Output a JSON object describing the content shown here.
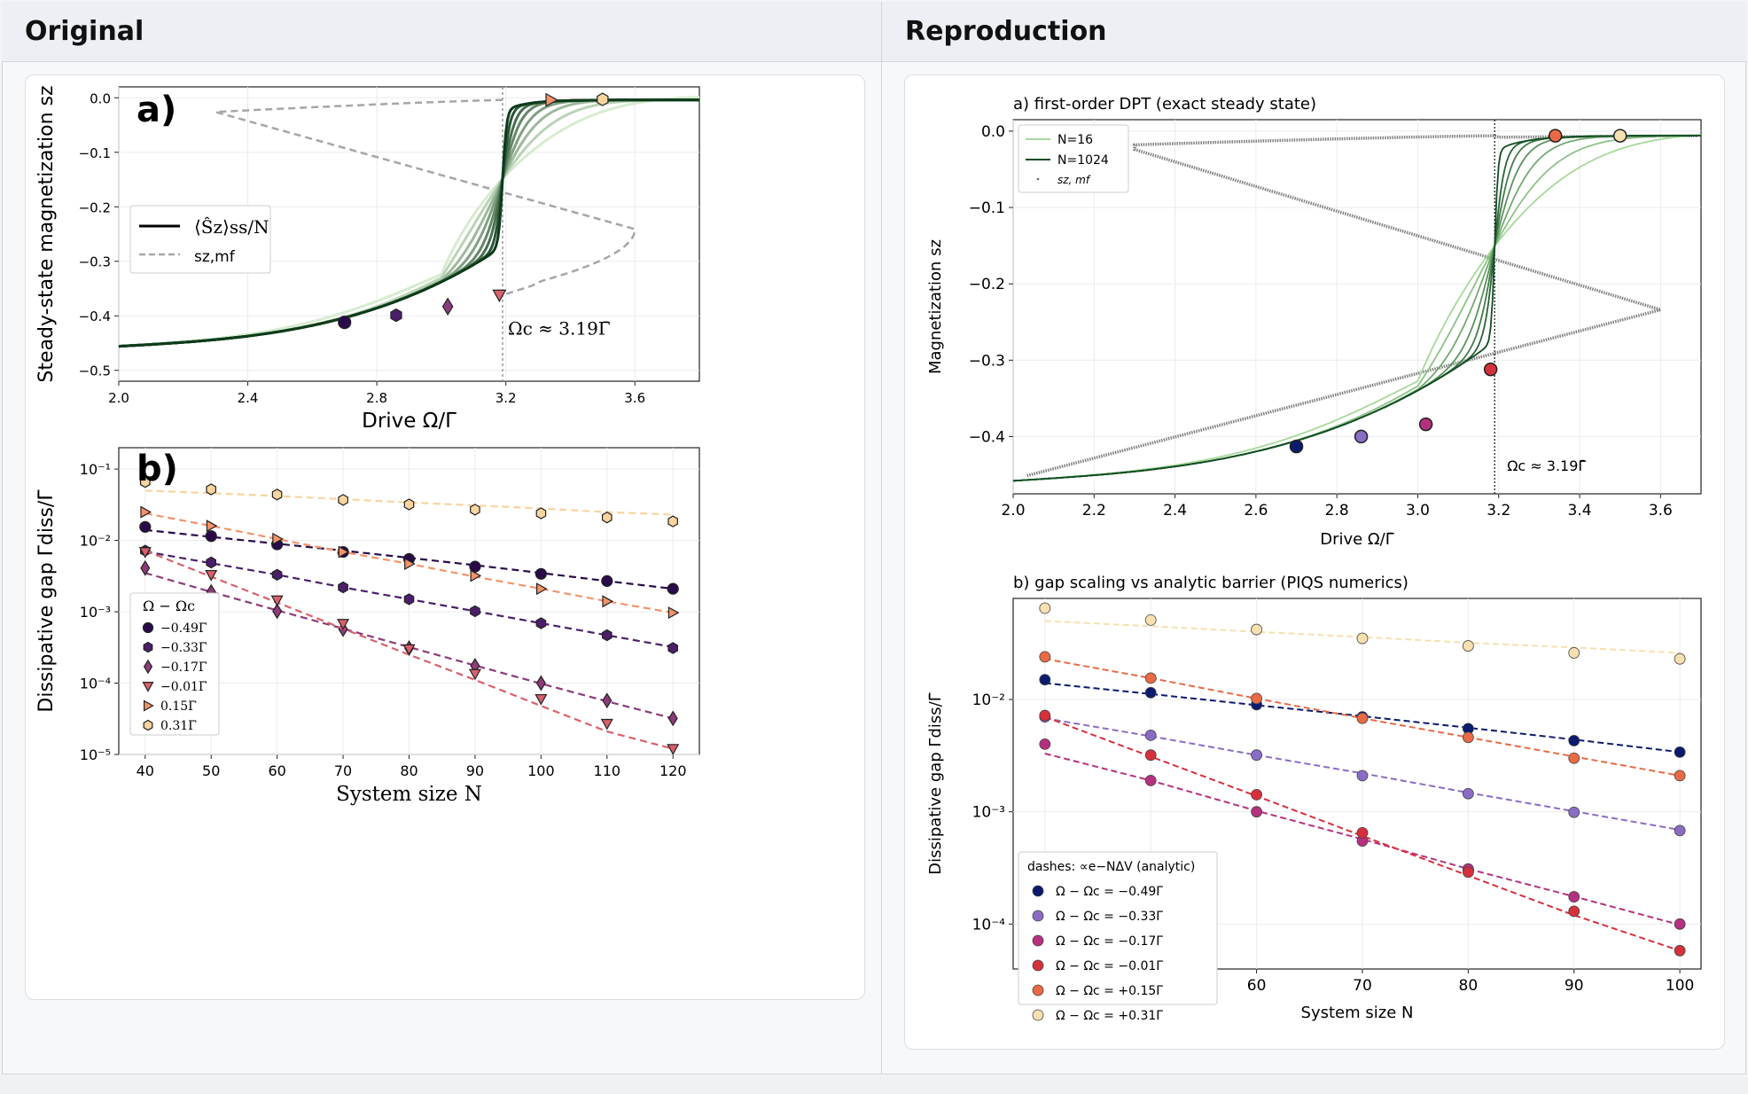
{
  "panels": {
    "left_title": "Original",
    "right_title": "Reproduction"
  },
  "colors": {
    "green_light": "#d7ecd0",
    "green_dark": "#0d3b1a",
    "mf_gray": "#a6a6a6",
    "repro_mf_gray": "#808080"
  },
  "chart_data": [
    {
      "id": "original-a",
      "type": "line",
      "panel_label": "a)",
      "xlabel": "Drive Ω/Γ̄",
      "ylabel": "Steady-state magnetization sz",
      "xlim": [
        2.0,
        3.8
      ],
      "ylim": [
        -0.52,
        0.02
      ],
      "xticks": [
        "2.0",
        "2.4",
        "2.8",
        "3.2",
        "3.6"
      ],
      "yticks": [
        "0.0",
        "−0.1",
        "−0.2",
        "−0.3",
        "−0.4",
        "−0.5"
      ],
      "legend": [
        "⟨Ŝz⟩ss/N",
        "sz,mf"
      ],
      "annotation": "Ωc ≈ 3.19Γ̄",
      "critical_drive": 3.19,
      "curve_sharpness": [
        1.2,
        2.2,
        3.6,
        5.5,
        8.5,
        13,
        22,
        40
      ],
      "markers": [
        {
          "x": 2.7,
          "y": -0.412,
          "shape": "circle",
          "color": "#2a0a4a"
        },
        {
          "x": 2.86,
          "y": -0.399,
          "shape": "hexagon",
          "color": "#4a1e6a"
        },
        {
          "x": 3.02,
          "y": -0.383,
          "shape": "diamond",
          "color": "#8e3b79"
        },
        {
          "x": 3.18,
          "y": -0.362,
          "shape": "triangle-down",
          "color": "#d9606a"
        },
        {
          "x": 3.34,
          "y": -0.004,
          "shape": "triangle-right",
          "color": "#f3936a"
        },
        {
          "x": 3.5,
          "y": -0.003,
          "shape": "hexagon",
          "color": "#f9d49e"
        }
      ]
    },
    {
      "id": "original-b",
      "type": "scatter",
      "panel_label": "b)",
      "xlabel": "System size N",
      "ylabel": "Dissipative gap Γdiss/Γ̄",
      "xlim": [
        36,
        124
      ],
      "ylog_range": [
        -5,
        -0.7
      ],
      "xticks": [
        40,
        50,
        60,
        70,
        80,
        90,
        100,
        110,
        120
      ],
      "yticks": [
        "10⁻¹",
        "10⁻²",
        "10⁻³",
        "10⁻⁴",
        "10⁻⁵"
      ],
      "legend_title": "Ω − Ωc",
      "x": [
        40,
        50,
        60,
        70,
        80,
        90,
        100,
        110,
        120
      ],
      "series": [
        {
          "name": "−0.49Γ̄",
          "shape": "circle",
          "color": "#2a0a4a",
          "values": [
            0.0155,
            0.0115,
            0.0088,
            0.0069,
            0.0055,
            0.0043,
            0.0034,
            0.0027,
            0.0021
          ],
          "fit": [
            0.014,
            0.0112,
            0.009,
            0.0072,
            0.0057,
            0.0045,
            0.0035,
            0.0027,
            0.0021
          ]
        },
        {
          "name": "−0.33Γ̄",
          "shape": "hexagon",
          "color": "#4a1e6a",
          "values": [
            0.0072,
            0.0049,
            0.0033,
            0.0022,
            0.0015,
            0.00102,
            0.00069,
            0.00047,
            0.00031
          ],
          "fit": [
            0.007,
            0.0048,
            0.0033,
            0.0022,
            0.0015,
            0.00102,
            0.00069,
            0.00047,
            0.00032
          ]
        },
        {
          "name": "−0.17Γ̄",
          "shape": "diamond",
          "color": "#8e3b79",
          "values": [
            0.0041,
            0.0019,
            0.00102,
            0.00057,
            0.00031,
            0.000175,
            0.0001,
            5.7e-05,
            3.2e-05
          ],
          "fit": [
            0.0035,
            0.0019,
            0.00105,
            0.00058,
            0.00032,
            0.000177,
            9.85e-05,
            5.55e-05,
            3.2e-05
          ]
        },
        {
          "name": "−0.01Γ̄",
          "shape": "triangle-down",
          "color": "#d9606a",
          "values": [
            0.0069,
            0.0033,
            0.00145,
            0.00068,
            0.0003,
            0.000135,
            6e-05,
            2.7e-05,
            1.2e-05
          ],
          "fit": [
            0.0072,
            0.0031,
            0.00135,
            0.00058,
            0.00025,
            0.000111,
            4.8e-05,
            2.1e-05,
            1.2e-05
          ]
        },
        {
          "name": "0.15Γ̄",
          "shape": "triangle-right",
          "color": "#f3936a",
          "values": [
            0.025,
            0.016,
            0.0105,
            0.0069,
            0.0047,
            0.0032,
            0.0021,
            0.0014,
            0.00097
          ],
          "fit": [
            0.024,
            0.016,
            0.0105,
            0.0069,
            0.0047,
            0.0031,
            0.0021,
            0.0014,
            0.00097
          ]
        },
        {
          "name": "0.31Γ̄",
          "shape": "hexagon",
          "color": "#f9d49e",
          "values": [
            0.066,
            0.052,
            0.044,
            0.037,
            0.032,
            0.027,
            0.024,
            0.021,
            0.0185
          ],
          "fit": [
            0.05,
            0.046,
            0.042,
            0.038,
            0.034,
            0.031,
            0.028,
            0.025,
            0.023
          ]
        }
      ]
    },
    {
      "id": "repro-a",
      "type": "line",
      "title": "a) first-order DPT (exact steady state)",
      "xlabel": "Drive Ω/Γ̄",
      "ylabel": "Magnetization sz",
      "xlim": [
        2.0,
        3.7
      ],
      "ylim": [
        -0.475,
        0.015
      ],
      "xticks": [
        "2.0",
        "2.2",
        "2.4",
        "2.6",
        "2.8",
        "3.0",
        "3.2",
        "3.4",
        "3.6"
      ],
      "yticks": [
        "0.0",
        "−0.1",
        "−0.2",
        "−0.3",
        "−0.4"
      ],
      "legend": [
        "N=16",
        "N=1024",
        "sz, mf"
      ],
      "annotation": "Ωc ≈ 3.19Γ̄",
      "critical_drive": 3.19,
      "curve_sharpness": [
        1.4,
        2.6,
        4.5,
        7.5,
        12,
        20,
        60
      ],
      "markers": [
        {
          "x": 2.7,
          "y": -0.413,
          "color": "#0a1a6e"
        },
        {
          "x": 2.86,
          "y": -0.4,
          "color": "#8a6cc4"
        },
        {
          "x": 3.02,
          "y": -0.384,
          "color": "#b5317f"
        },
        {
          "x": 3.18,
          "y": -0.312,
          "color": "#d6303c"
        },
        {
          "x": 3.34,
          "y": -0.006,
          "color": "#ea6a45"
        },
        {
          "x": 3.5,
          "y": -0.006,
          "color": "#f7e0b0"
        }
      ]
    },
    {
      "id": "repro-b",
      "type": "scatter",
      "title": "b) gap scaling vs analytic barrier (PIQS numerics)",
      "xlabel": "System size N",
      "ylabel": "Dissipative gap Γdiss/Γ̄",
      "xlim": [
        37,
        102
      ],
      "ylog_range": [
        -4.4,
        -1.1
      ],
      "xticks": [
        40,
        50,
        60,
        70,
        80,
        90,
        100
      ],
      "yticks": [
        "10⁻²",
        "10⁻³",
        "10⁻⁴"
      ],
      "legend_title": "dashes: ∝e−NΔV (analytic)",
      "x": [
        40,
        50,
        60,
        70,
        80,
        90,
        100
      ],
      "series": [
        {
          "name": "Ω − Ωc = −0.49Γ̄",
          "color": "#0a1a6e",
          "values": [
            0.015,
            0.0115,
            0.009,
            0.007,
            0.0055,
            0.0043,
            0.0034
          ],
          "fit": [
            0.014,
            0.0112,
            0.0089,
            0.0071,
            0.0056,
            0.0044,
            0.0034
          ]
        },
        {
          "name": "Ω − Ωc = −0.33Γ̄",
          "color": "#8a6cc4",
          "values": [
            0.007,
            0.0048,
            0.0032,
            0.0021,
            0.00145,
            0.00099,
            0.00068
          ],
          "fit": [
            0.0068,
            0.0047,
            0.0032,
            0.0022,
            0.00148,
            0.00101,
            0.00069
          ]
        },
        {
          "name": "Ω − Ωc = −0.17Γ̄",
          "color": "#b5317f",
          "values": [
            0.004,
            0.0019,
            0.001,
            0.00055,
            0.00031,
            0.000175,
            0.0001
          ],
          "fit": [
            0.0033,
            0.0019,
            0.00102,
            0.00057,
            0.00031,
            0.000176,
            9.85e-05
          ]
        },
        {
          "name": "Ω − Ωc = −0.01Γ̄",
          "color": "#d6303c",
          "values": [
            0.0072,
            0.0032,
            0.00142,
            0.00065,
            0.00029,
            0.00013,
            5.8e-05
          ],
          "fit": [
            0.007,
            0.0031,
            0.00138,
            0.00061,
            0.00027,
            0.00012,
            5.8e-05
          ]
        },
        {
          "name": "Ω − Ωc = +0.15Γ̄",
          "color": "#ea6a45",
          "values": [
            0.024,
            0.0155,
            0.0102,
            0.0068,
            0.0046,
            0.003,
            0.0021
          ],
          "fit": [
            0.023,
            0.0155,
            0.0102,
            0.0068,
            0.0046,
            0.0031,
            0.0021
          ]
        },
        {
          "name": "Ω − Ωc = +0.31Γ̄",
          "color": "#f7e0b0",
          "values": [
            0.065,
            0.051,
            0.042,
            0.035,
            0.03,
            0.026,
            0.023
          ],
          "fit": [
            0.05,
            0.045,
            0.04,
            0.036,
            0.032,
            0.029,
            0.026
          ]
        }
      ]
    }
  ]
}
